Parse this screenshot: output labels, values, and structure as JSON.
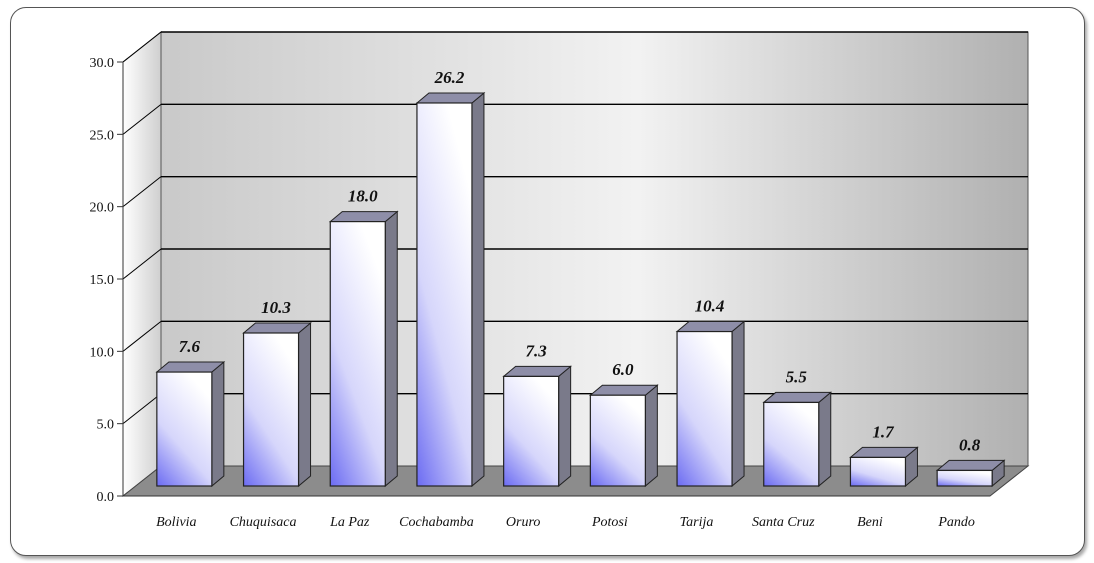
{
  "chart_data": {
    "type": "bar",
    "title": "",
    "xlabel": "",
    "ylabel": "",
    "categories": [
      "Bolivia",
      "Chuquisaca",
      "La Paz",
      "Cochabamba",
      "Oruro",
      "Potosi",
      "Tarija",
      "Santa Cruz",
      "Beni",
      "Pando"
    ],
    "values": [
      7.6,
      10.3,
      18.0,
      26.2,
      7.3,
      6.0,
      10.4,
      5.5,
      1.7,
      0.8
    ],
    "data_labels": [
      "7.6",
      "10.3",
      "18.0",
      "26.2",
      "7.3",
      "6.0",
      "10.4",
      "5.5",
      "1.7",
      "0.8"
    ],
    "yticks": [
      "0.0",
      "5.0",
      "10.0",
      "15.0",
      "20.0",
      "25.0",
      "30.0"
    ],
    "ylim": [
      0,
      30
    ],
    "grid": true,
    "legend": "none",
    "style": "3d-column",
    "colors": {
      "bar_top": "#ffffff",
      "bar_bottom": "#6b6bf2",
      "bar_side": "#7a7a8a",
      "wall": "#bdbdbd",
      "floor": "#8c8c8c",
      "grid": "#000000"
    }
  }
}
